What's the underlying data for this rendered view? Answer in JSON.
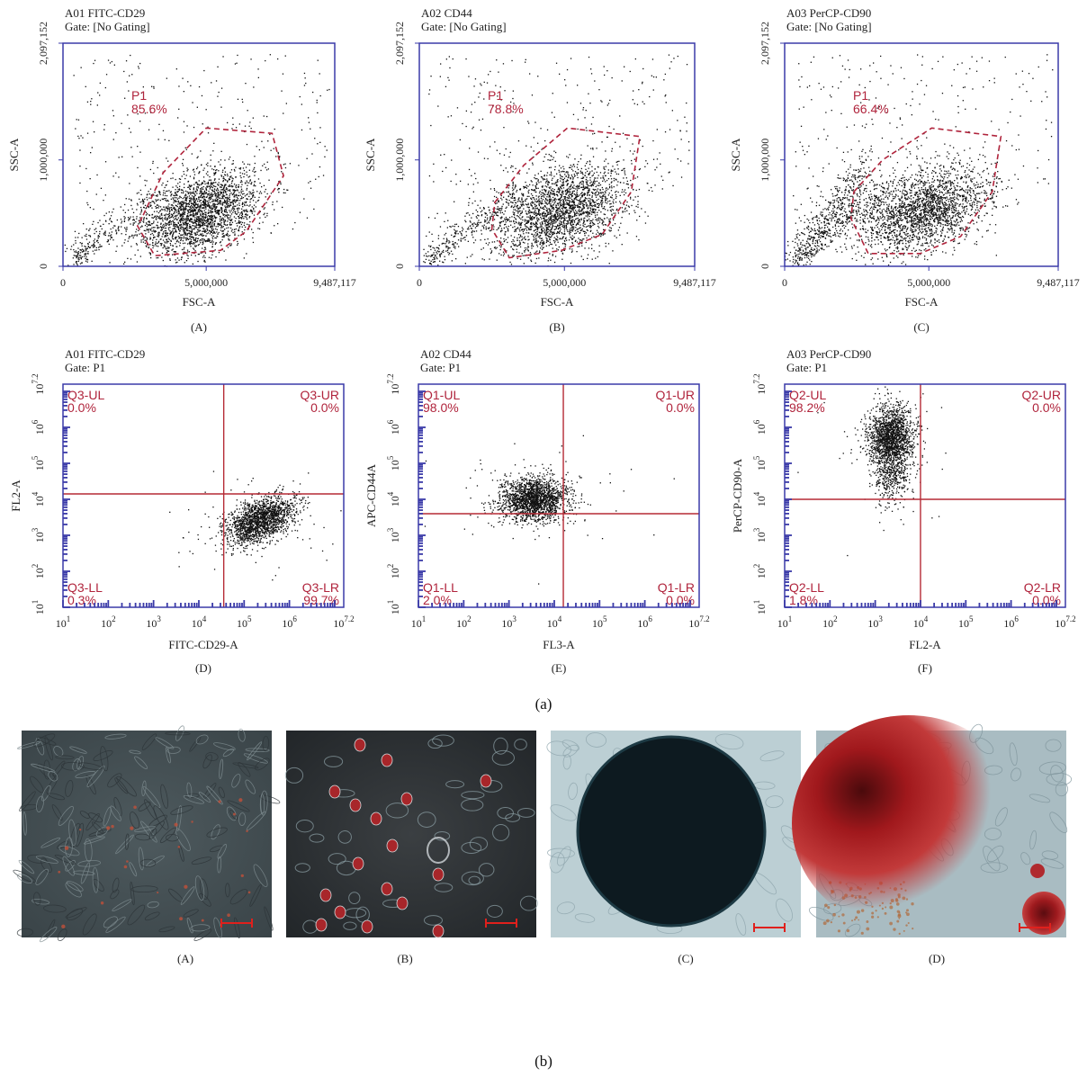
{
  "figure": {
    "part_a_label": "(a)",
    "part_b_label": "(b)",
    "micrograph_labels": [
      "(A)",
      "(B)",
      "(C)",
      "(D)"
    ]
  },
  "colors": {
    "axis": "#3a3aa8",
    "gate": "#b0243c",
    "quadrant": "#b52a35",
    "points": "#111111",
    "text_red": "#b0243c"
  },
  "chart_data": [
    {
      "type": "scatter",
      "panel_label": "(A)",
      "title": "A01 FITC-CD29",
      "gate_text": "Gate: [No Gating]",
      "xlabel": "FSC-A",
      "ylabel": "SSC-A",
      "xlim": [
        0,
        9487117
      ],
      "ylim": [
        0,
        2097152
      ],
      "x_ticks": [
        "0",
        "5,000,000",
        "9,487,117"
      ],
      "y_ticks": [
        "0",
        "1,000,000",
        "2,097,152"
      ],
      "gate": {
        "name": "P1",
        "percent": "85.6%",
        "polygon": [
          [
            2800000,
            480000
          ],
          [
            3500000,
            880000
          ],
          [
            5000000,
            1300000
          ],
          [
            7300000,
            1250000
          ],
          [
            7700000,
            850000
          ],
          [
            6400000,
            330000
          ],
          [
            5500000,
            150000
          ],
          [
            3200000,
            100000
          ],
          [
            2600000,
            380000
          ]
        ]
      },
      "cluster": {
        "center": [
          4800000,
          500000
        ],
        "spread": [
          1100000,
          230000
        ],
        "n": 2400,
        "low_tail": true
      }
    },
    {
      "type": "scatter",
      "panel_label": "(B)",
      "title": "A02 CD44",
      "gate_text": "Gate: [No Gating]",
      "xlabel": "FSC-A",
      "ylabel": "SSC-A",
      "xlim": [
        0,
        9487117
      ],
      "ylim": [
        0,
        2097152
      ],
      "x_ticks": [
        "0",
        "5,000,000",
        "9,487,117"
      ],
      "y_ticks": [
        "0",
        "1,000,000",
        "2,097,152"
      ],
      "gate": {
        "name": "P1",
        "percent": "78.8%",
        "polygon": [
          [
            2600000,
            600000
          ],
          [
            3600000,
            950000
          ],
          [
            5100000,
            1300000
          ],
          [
            7600000,
            1220000
          ],
          [
            7300000,
            700000
          ],
          [
            6300000,
            300000
          ],
          [
            4900000,
            150000
          ],
          [
            3100000,
            80000
          ],
          [
            2500000,
            350000
          ]
        ]
      },
      "cluster": {
        "center": [
          4800000,
          520000
        ],
        "spread": [
          1200000,
          250000
        ],
        "n": 2400,
        "low_tail": true
      }
    },
    {
      "type": "scatter",
      "panel_label": "(C)",
      "title": "A03 PerCP-CD90",
      "gate_text": "Gate: [No Gating]",
      "xlabel": "FSC-A",
      "ylabel": "SSC-A",
      "xlim": [
        0,
        9487117
      ],
      "ylim": [
        0,
        2097152
      ],
      "x_ticks": [
        "0",
        "5,000,000",
        "9,487,117"
      ],
      "y_ticks": [
        "0",
        "1,000,000",
        "2,097,152"
      ],
      "gate": {
        "name": "P1",
        "percent": "66.4%",
        "polygon": [
          [
            2400000,
            700000
          ],
          [
            3400000,
            1000000
          ],
          [
            5100000,
            1300000
          ],
          [
            7500000,
            1220000
          ],
          [
            7200000,
            700000
          ],
          [
            6100000,
            280000
          ],
          [
            4700000,
            120000
          ],
          [
            2900000,
            120000
          ],
          [
            2300000,
            450000
          ]
        ]
      },
      "cluster": {
        "center": [
          4800000,
          520000
        ],
        "spread": [
          1150000,
          240000
        ],
        "n": 2200,
        "low_tail": true,
        "arm": true
      }
    },
    {
      "type": "scatter",
      "panel_label": "(D)",
      "title": "A01 FITC-CD29",
      "gate_text": "Gate: P1",
      "xlabel": "FITC-CD29-A",
      "ylabel": "FL2-A",
      "log_scale": true,
      "xlim": [
        1,
        7.2
      ],
      "ylim": [
        1,
        7.2
      ],
      "decade_ticks": [
        "10^1",
        "10^2",
        "10^3",
        "10^4",
        "10^5",
        "10^6",
        "10^7.2"
      ],
      "quadrant_x": 4.55,
      "quadrant_y": 4.15,
      "quadrants": {
        "UL": "Q3-UL",
        "UR": "Q3-UR",
        "LL": "Q3-LL",
        "LR": "Q3-LR"
      },
      "percent": {
        "UL": "0.0%",
        "UR": "0.0%",
        "LL": "0.3%",
        "LR": "99.7%"
      },
      "cluster": {
        "center": [
          5.35,
          3.4
        ],
        "spread": [
          0.38,
          0.3
        ],
        "n": 1700,
        "tilt": 0.55
      }
    },
    {
      "type": "scatter",
      "panel_label": "(E)",
      "title": "A02 CD44",
      "gate_text": "Gate: P1",
      "xlabel": "FL3-A",
      "ylabel": "APC-CD44A",
      "log_scale": true,
      "xlim": [
        1,
        7.2
      ],
      "ylim": [
        1,
        7.2
      ],
      "decade_ticks": [
        "10^1",
        "10^2",
        "10^3",
        "10^4",
        "10^5",
        "10^6",
        "10^7.2"
      ],
      "quadrant_x": 4.2,
      "quadrant_y": 3.6,
      "quadrants": {
        "UL": "Q1-UL",
        "UR": "Q1-UR",
        "LL": "Q1-LL",
        "LR": "Q1-LR"
      },
      "percent": {
        "UL": "98.0%",
        "UR": "0.0%",
        "LL": "2.0%",
        "LR": "0.0%"
      },
      "cluster": {
        "center": [
          3.55,
          4.0
        ],
        "spread": [
          0.38,
          0.3
        ],
        "n": 1800,
        "tilt": 0.05
      }
    },
    {
      "type": "scatter",
      "panel_label": "(F)",
      "title": "A03 PerCP-CD90",
      "gate_text": "Gate: P1",
      "xlabel": "FL2-A",
      "ylabel": "PerCP-CD90-A",
      "log_scale": true,
      "xlim": [
        1,
        7.2
      ],
      "ylim": [
        1,
        7.2
      ],
      "decade_ticks": [
        "10^1",
        "10^2",
        "10^3",
        "10^4",
        "10^5",
        "10^6",
        "10^7.2"
      ],
      "quadrant_x": 4.0,
      "quadrant_y": 4.0,
      "quadrants": {
        "UL": "Q2-UL",
        "UR": "Q2-UR",
        "LL": "Q2-LL",
        "LR": "Q2-LR"
      },
      "percent": {
        "UL": "98.2%",
        "UR": "0.0%",
        "LL": "1.8%",
        "LR": "0.0%"
      },
      "cluster": {
        "center": [
          3.35,
          5.7
        ],
        "spread": [
          0.25,
          0.45
        ],
        "n": 1700,
        "tilt": 0.0,
        "tail_down": true
      }
    }
  ]
}
